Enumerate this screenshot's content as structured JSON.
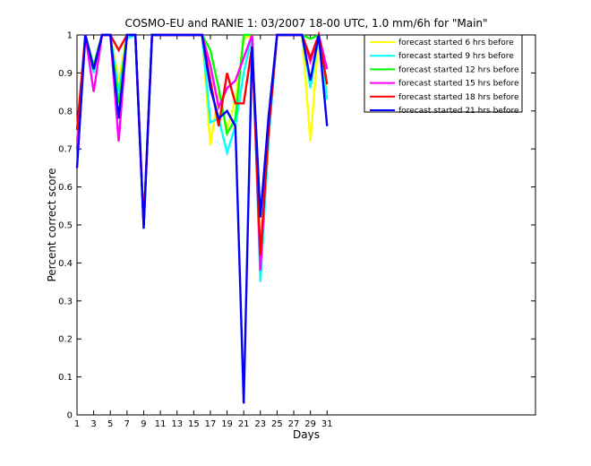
{
  "chart_data": {
    "type": "line",
    "title": "COSMO-EU and RANIE 1: 03/2007 18-00 UTC, 1.0 mm/6h for \"Main\"",
    "xlabel": "Days",
    "ylabel": "Percent correct score",
    "xlim": [
      1,
      56
    ],
    "ylim": [
      0,
      1
    ],
    "xticks": [
      1,
      3,
      5,
      7,
      9,
      11,
      13,
      15,
      17,
      19,
      21,
      23,
      25,
      27,
      29,
      31
    ],
    "yticks": [
      0,
      0.1,
      0.2,
      0.3,
      0.4,
      0.5,
      0.6,
      0.7,
      0.8,
      0.9,
      1
    ],
    "ytick_labels": [
      "0",
      "0.1",
      "0.2",
      "0.3",
      "0.4",
      "0.5",
      "0.6",
      "0.7",
      "0.8",
      "0.9",
      "1"
    ],
    "grid": false,
    "legend_position": "top-right",
    "x": [
      1,
      2,
      3,
      4,
      5,
      6,
      7,
      8,
      9,
      10,
      11,
      12,
      13,
      14,
      15,
      16,
      17,
      18,
      19,
      20,
      21,
      22,
      23,
      24,
      25,
      26,
      27,
      28,
      29,
      30,
      31
    ],
    "series": [
      {
        "name": "forecast started 6 hrs before",
        "color": "#ffff00",
        "values": [
          0.72,
          1.0,
          0.9,
          1.0,
          1.0,
          0.88,
          1.0,
          1.0,
          0.5,
          1.0,
          1.0,
          1.0,
          1.0,
          1.0,
          1.0,
          1.0,
          0.71,
          0.85,
          0.75,
          0.83,
          0.99,
          1.0,
          0.42,
          0.75,
          1.0,
          1.0,
          1.0,
          1.0,
          0.72,
          1.0,
          0.85
        ]
      },
      {
        "name": "forecast started 9 hrs before",
        "color": "#00ffff",
        "values": [
          0.7,
          1.0,
          0.9,
          1.0,
          1.0,
          0.85,
          0.99,
          1.0,
          0.5,
          1.0,
          1.0,
          1.0,
          1.0,
          1.0,
          1.0,
          1.0,
          0.77,
          0.78,
          0.69,
          0.76,
          0.9,
          1.0,
          0.35,
          0.73,
          1.0,
          1.0,
          1.0,
          1.0,
          0.86,
          1.0,
          0.83
        ]
      },
      {
        "name": "forecast started 12 hrs before",
        "color": "#00ff00",
        "values": [
          0.72,
          1.0,
          0.92,
          1.0,
          1.0,
          0.82,
          1.0,
          1.0,
          0.5,
          1.0,
          1.0,
          1.0,
          1.0,
          1.0,
          1.0,
          1.0,
          0.96,
          0.86,
          0.74,
          0.78,
          1.0,
          1.0,
          0.4,
          0.76,
          1.0,
          1.0,
          1.0,
          1.0,
          0.99,
          1.0,
          0.87
        ]
      },
      {
        "name": "forecast started 15 hrs before",
        "color": "#ff00ff",
        "values": [
          0.7,
          1.0,
          0.85,
          1.0,
          1.0,
          0.72,
          1.0,
          1.0,
          0.5,
          1.0,
          1.0,
          1.0,
          1.0,
          1.0,
          1.0,
          1.0,
          0.92,
          0.81,
          0.86,
          0.88,
          0.94,
          1.0,
          0.38,
          0.78,
          1.0,
          1.0,
          1.0,
          1.0,
          0.93,
          1.0,
          0.91
        ]
      },
      {
        "name": "forecast started 18 hrs before",
        "color": "#ff0000",
        "values": [
          0.75,
          1.0,
          0.91,
          1.0,
          1.0,
          0.96,
          1.0,
          1.0,
          0.5,
          1.0,
          1.0,
          1.0,
          1.0,
          1.0,
          1.0,
          1.0,
          0.88,
          0.76,
          0.9,
          0.82,
          0.82,
          0.97,
          0.42,
          0.75,
          1.0,
          1.0,
          1.0,
          1.0,
          0.94,
          1.0,
          0.87
        ]
      },
      {
        "name": "forecast started 21 hrs before",
        "color": "#0000ff",
        "values": [
          0.65,
          1.0,
          0.91,
          1.0,
          1.0,
          0.78,
          1.0,
          1.0,
          0.49,
          1.0,
          1.0,
          1.0,
          1.0,
          1.0,
          1.0,
          1.0,
          0.86,
          0.78,
          0.8,
          0.76,
          0.03,
          0.97,
          0.52,
          0.79,
          1.0,
          1.0,
          1.0,
          1.0,
          0.88,
          1.0,
          0.76
        ]
      }
    ]
  }
}
